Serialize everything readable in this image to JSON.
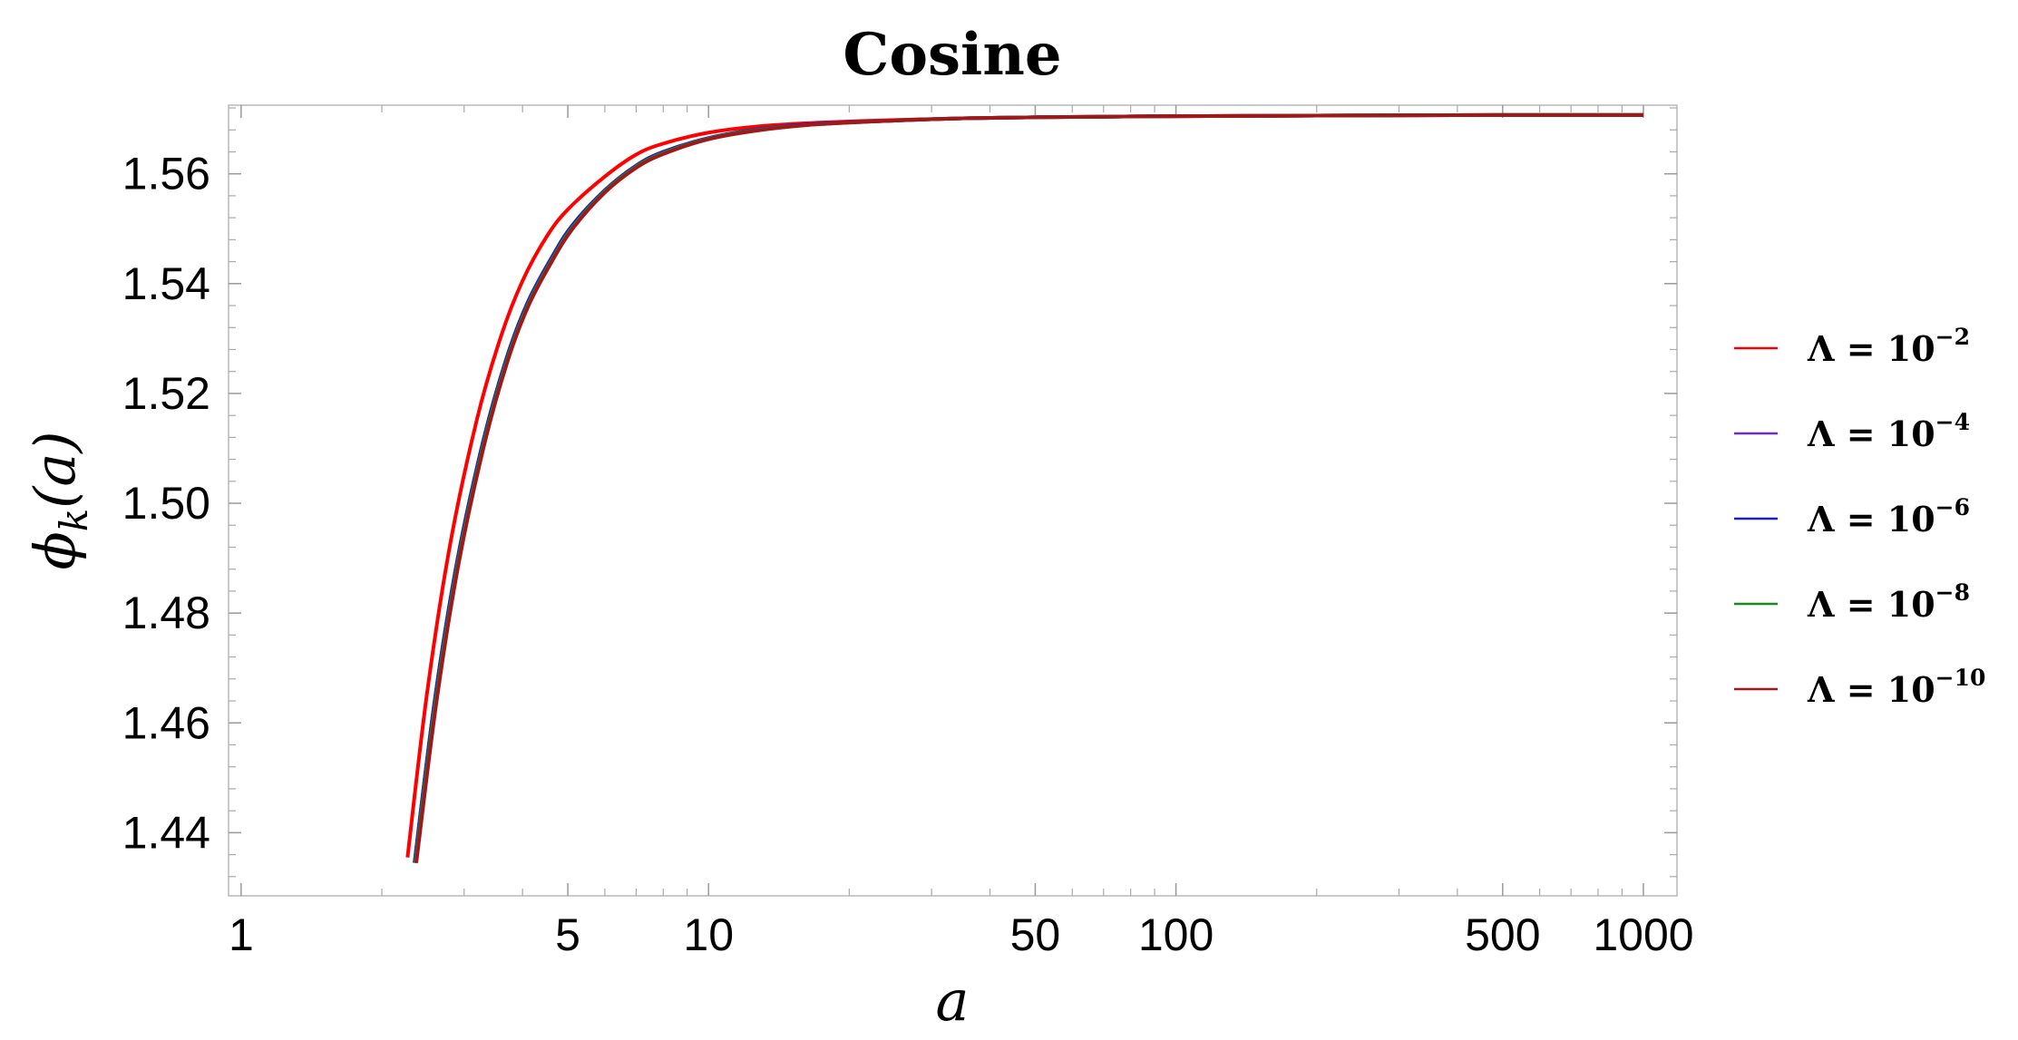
{
  "chart_data": {
    "type": "line",
    "title": "Cosine",
    "xlabel": "a",
    "ylabel": "ϕ_k(a)",
    "x_scale": "log",
    "xlim": [
      0.94,
      1180
    ],
    "ylim": [
      1.4285,
      1.5725
    ],
    "x_ticks": [
      1,
      5,
      10,
      50,
      100,
      500,
      1000
    ],
    "x_tick_labels": [
      "1",
      "5",
      "10",
      "50",
      "100",
      "500",
      "1000"
    ],
    "y_ticks": [
      1.44,
      1.46,
      1.48,
      1.5,
      1.52,
      1.54,
      1.56
    ],
    "y_tick_labels": [
      "1.44",
      "1.46",
      "1.48",
      "1.50",
      "1.52",
      "1.54",
      "1.56"
    ],
    "grid": false,
    "legend_position": "right",
    "series": [
      {
        "name": "Λ = 10^-2",
        "label_base": "Λ = 10",
        "label_exp": "−2",
        "color": "#ff0000",
        "x": [
          2.27,
          2.5,
          2.8,
          3.2,
          3.6,
          4.0,
          4.5,
          5.0,
          6.0,
          7.0,
          8.0,
          10,
          13,
          17,
          25,
          35,
          50,
          70,
          100,
          200,
          500,
          1000
        ],
        "y": [
          1.4355,
          1.4655,
          1.4925,
          1.5155,
          1.5305,
          1.5405,
          1.5485,
          1.5535,
          1.5595,
          1.5635,
          1.5655,
          1.5675,
          1.5687,
          1.5693,
          1.5698,
          1.5701,
          1.5703,
          1.5704,
          1.5705,
          1.5706,
          1.5707,
          1.5707
        ]
      },
      {
        "name": "Λ = 10^-4",
        "label_base": "Λ = 10",
        "label_exp": "−4",
        "color": "#6a2ccf",
        "x": [
          2.35,
          2.6,
          2.9,
          3.3,
          3.7,
          4.1,
          4.6,
          5.1,
          6.0,
          7.0,
          8.0,
          10,
          13,
          17,
          25,
          35,
          50,
          70,
          100,
          200,
          500,
          1000
        ],
        "y": [
          1.4345,
          1.4645,
          1.4895,
          1.5115,
          1.5265,
          1.5365,
          1.5445,
          1.5505,
          1.557,
          1.5615,
          1.564,
          1.5665,
          1.5682,
          1.5691,
          1.5697,
          1.5701,
          1.5703,
          1.5704,
          1.5705,
          1.5706,
          1.5707,
          1.5707
        ]
      },
      {
        "name": "Λ = 10^-6",
        "label_base": "Λ = 10",
        "label_exp": "−6",
        "color": "#1a1adc",
        "x": [
          2.35,
          2.6,
          2.9,
          3.3,
          3.7,
          4.1,
          4.6,
          5.1,
          6.0,
          7.0,
          8.0,
          10,
          13,
          17,
          25,
          35,
          50,
          70,
          100,
          200,
          500,
          1000
        ],
        "y": [
          1.4345,
          1.4645,
          1.4895,
          1.5115,
          1.5265,
          1.5365,
          1.5445,
          1.5505,
          1.557,
          1.5615,
          1.564,
          1.5665,
          1.5682,
          1.5691,
          1.5697,
          1.5701,
          1.5703,
          1.5704,
          1.5705,
          1.5706,
          1.5707,
          1.5707
        ]
      },
      {
        "name": "Λ = 10^-8",
        "label_base": "Λ = 10",
        "label_exp": "−8",
        "color": "#1a8a1a",
        "x": [
          2.36,
          2.61,
          2.91,
          3.31,
          3.71,
          4.11,
          4.61,
          5.11,
          6.0,
          7.0,
          8.0,
          10,
          13,
          17,
          25,
          35,
          50,
          70,
          100,
          200,
          500,
          1000
        ],
        "y": [
          1.4345,
          1.4642,
          1.4892,
          1.5112,
          1.5262,
          1.5362,
          1.5442,
          1.5502,
          1.5568,
          1.5613,
          1.5638,
          1.5664,
          1.5681,
          1.569,
          1.5697,
          1.5701,
          1.5703,
          1.5704,
          1.5705,
          1.5706,
          1.5707,
          1.5707
        ]
      },
      {
        "name": "Λ = 10^-10",
        "label_base": "Λ = 10",
        "label_exp": "−10",
        "color": "#a01818",
        "x": [
          2.37,
          2.62,
          2.92,
          3.32,
          3.72,
          4.12,
          4.62,
          5.12,
          6.0,
          7.0,
          8.0,
          10,
          13,
          17,
          25,
          35,
          50,
          70,
          100,
          200,
          500,
          1000
        ],
        "y": [
          1.4345,
          1.464,
          1.489,
          1.511,
          1.526,
          1.536,
          1.544,
          1.55,
          1.5566,
          1.5611,
          1.5636,
          1.5663,
          1.568,
          1.569,
          1.5697,
          1.5701,
          1.5703,
          1.5704,
          1.5705,
          1.5706,
          1.5707,
          1.5707
        ]
      }
    ]
  }
}
